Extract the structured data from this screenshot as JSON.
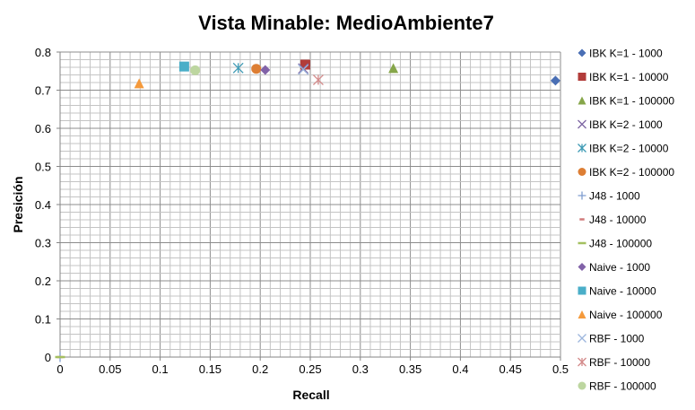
{
  "chart_data": {
    "type": "scatter",
    "title": "Vista Minable: MedioAmbiente7",
    "xlabel": "Recall",
    "ylabel": "Presición",
    "xlim": [
      0,
      0.5
    ],
    "ylim": [
      0,
      0.8
    ],
    "x_ticks": [
      "0",
      "0.05",
      "0.1",
      "0.15",
      "0.2",
      "0.25",
      "0.3",
      "0.35",
      "0.4",
      "0.45",
      "0.5"
    ],
    "y_ticks": [
      "0",
      "0.1",
      "0.2",
      "0.3",
      "0.4",
      "0.5",
      "0.6",
      "0.7",
      "0.8"
    ],
    "grid": true,
    "legend_position": "right",
    "series": [
      {
        "name": "IBK K=1 - 1000",
        "marker": "diamond",
        "color": "#4a6fb5",
        "points": [
          [
            0.495,
            0.725
          ]
        ]
      },
      {
        "name": "IBK K=1 - 10000",
        "marker": "square",
        "color": "#b23c3a",
        "points": [
          [
            0.245,
            0.767
          ]
        ]
      },
      {
        "name": "IBK K=1 - 100000",
        "marker": "triangle",
        "color": "#86a64a",
        "points": [
          [
            0.333,
            0.758
          ]
        ]
      },
      {
        "name": "IBK K=2 - 1000",
        "marker": "x",
        "color": "#7d66a3",
        "points": [
          [
            0.243,
            0.757
          ]
        ]
      },
      {
        "name": "IBK K=2 - 10000",
        "marker": "star",
        "color": "#3f9bb5",
        "points": [
          [
            0.178,
            0.758
          ]
        ]
      },
      {
        "name": "IBK K=2 - 100000",
        "marker": "circle",
        "color": "#dd7e34",
        "points": [
          [
            0.196,
            0.756
          ]
        ]
      },
      {
        "name": "J48 - 1000",
        "marker": "plus",
        "color": "#7f9ed0",
        "points": [
          [
            0.0,
            0.0
          ]
        ]
      },
      {
        "name": "J48 - 10000",
        "marker": "dash",
        "color": "#d17a7a",
        "points": [
          [
            0.0,
            0.0
          ]
        ]
      },
      {
        "name": "J48 - 100000",
        "marker": "hline",
        "color": "#a4c060",
        "points": [
          [
            0.0,
            0.0
          ]
        ]
      },
      {
        "name": "Naive - 1000",
        "marker": "diamond",
        "color": "#8162a8",
        "points": [
          [
            0.205,
            0.753
          ]
        ]
      },
      {
        "name": "Naive - 10000",
        "marker": "square",
        "color": "#4aaec8",
        "points": [
          [
            0.124,
            0.762
          ]
        ]
      },
      {
        "name": "Naive - 100000",
        "marker": "triangle",
        "color": "#f59a3c",
        "points": [
          [
            0.079,
            0.718
          ]
        ]
      },
      {
        "name": "RBF - 1000",
        "marker": "x",
        "color": "#9db6dd",
        "points": [
          [
            0.243,
            0.754
          ]
        ]
      },
      {
        "name": "RBF - 10000",
        "marker": "star",
        "color": "#d48a8a",
        "points": [
          [
            0.258,
            0.727
          ]
        ]
      },
      {
        "name": "RBF - 100000",
        "marker": "circle",
        "color": "#bdd6a0",
        "points": [
          [
            0.135,
            0.752
          ]
        ]
      }
    ]
  }
}
